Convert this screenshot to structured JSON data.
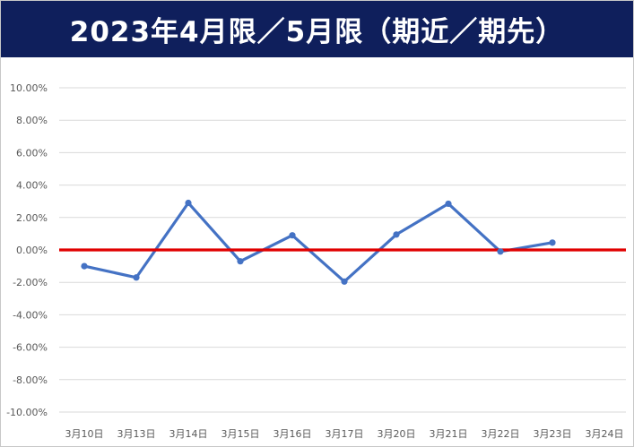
{
  "title": "2023年4月限／5月限（期近／期先）",
  "colors": {
    "title_bg": "#0f1f5c",
    "title_text": "#ffffff",
    "series_line": "#4472c4",
    "zero_line": "#e00000",
    "grid": "#d9d9d9",
    "tick_text": "#595959"
  },
  "chart_data": {
    "type": "line",
    "title": "2023年4月限／5月限（期近／期先）",
    "xlabel": "",
    "ylabel": "",
    "categories": [
      "3月10日",
      "3月13日",
      "3月14日",
      "3月15日",
      "3月16日",
      "3月17日",
      "3月20日",
      "3月21日",
      "3月22日",
      "3月23日",
      "3月24日"
    ],
    "y_tick_labels": [
      "10.00%",
      "8.00%",
      "6.00%",
      "4.00%",
      "2.00%",
      "0.00%",
      "-2.00%",
      "-4.00%",
      "-6.00%",
      "-8.00%",
      "-10.00%"
    ],
    "ylim": [
      -10,
      10
    ],
    "y_step": 2,
    "y_unit": "percent",
    "grid": true,
    "legend": "none",
    "series": [
      {
        "values": [
          -1.0,
          -1.7,
          2.9,
          -0.7,
          0.9,
          -1.95,
          0.95,
          2.85,
          -0.1,
          0.45,
          null
        ]
      }
    ],
    "reference_line": {
      "y": 0
    }
  }
}
